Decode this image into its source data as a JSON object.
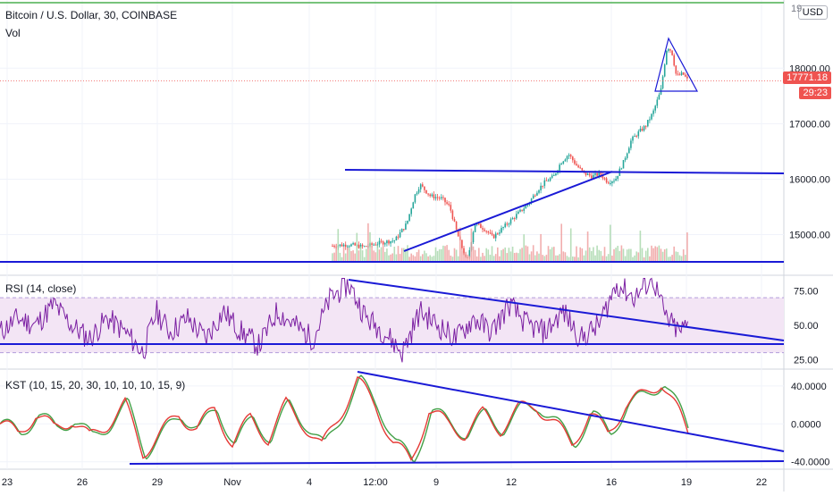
{
  "legend": {
    "main_title": "Bitcoin / U.S. Dollar, 30, COINBASE",
    "volume_label": "Vol",
    "rsi_label": "RSI (14, close)",
    "kst_label": "KST (10, 15, 20, 30, 10, 10, 10, 15, 9)"
  },
  "currency_badge": "USD",
  "last_price_tag": "17771.18",
  "countdown_tag": "29:23",
  "price_axis_top_partial": "19",
  "colors": {
    "price_line": "#2962ff",
    "drawing": "#1a1ad6",
    "rsi": "#7b1fa2",
    "rsi_band": "#f3e5f5",
    "kst": "#e53935",
    "kst_signal": "#43a047",
    "up": "#26a69a",
    "down": "#ef5350",
    "grid": "#f0f3fa",
    "green_line": "#4caf50"
  },
  "chart_data": [
    {
      "type": "candlestick",
      "title": "Bitcoin / U.S. Dollar, 30, COINBASE",
      "ylabel": "USD",
      "ylim": [
        14300,
        19100
      ],
      "yticks": [
        15000,
        16000,
        17000,
        18000
      ],
      "ytick_labels": [
        "15000.00",
        "16000.00",
        "17000.00",
        "18000.00"
      ],
      "last_price": 17771.18,
      "x_tick_labels": [
        "23",
        "26",
        "29",
        "Nov",
        "4",
        "12:00",
        "9",
        "12",
        "16",
        "19",
        "22"
      ],
      "close_path": [
        [
          0,
          14800
        ],
        [
          20,
          14820
        ],
        [
          40,
          14780
        ],
        [
          60,
          14850
        ],
        [
          80,
          14900
        ],
        [
          95,
          15200
        ],
        [
          105,
          15700
        ],
        [
          112,
          15900
        ],
        [
          125,
          15700
        ],
        [
          140,
          15650
        ],
        [
          150,
          15500
        ],
        [
          160,
          15000
        ],
        [
          172,
          14500
        ],
        [
          182,
          15200
        ],
        [
          195,
          15100
        ],
        [
          205,
          14950
        ],
        [
          220,
          15150
        ],
        [
          235,
          15350
        ],
        [
          250,
          15550
        ],
        [
          262,
          15800
        ],
        [
          272,
          15950
        ],
        [
          283,
          16050
        ],
        [
          292,
          16300
        ],
        [
          302,
          16450
        ],
        [
          312,
          16250
        ],
        [
          322,
          16100
        ],
        [
          332,
          16050
        ],
        [
          342,
          16100
        ],
        [
          352,
          15950
        ],
        [
          362,
          16000
        ],
        [
          372,
          16300
        ],
        [
          382,
          16700
        ],
        [
          392,
          16850
        ],
        [
          400,
          16950
        ],
        [
          410,
          17200
        ],
        [
          420,
          17600
        ],
        [
          428,
          18400
        ],
        [
          434,
          18300
        ],
        [
          440,
          17850
        ],
        [
          448,
          17900
        ],
        [
          455,
          17771
        ]
      ],
      "volume": {
        "label": "Vol"
      }
    },
    {
      "type": "line",
      "name": "RSI (14, close)",
      "ylim": [
        20,
        85
      ],
      "yticks": [
        25,
        50,
        75
      ],
      "ytick_labels": [
        "25.00",
        "50.00",
        "75.00"
      ],
      "band": [
        30,
        70
      ],
      "path": [
        [
          0,
          45
        ],
        [
          20,
          55
        ],
        [
          40,
          50
        ],
        [
          60,
          65
        ],
        [
          80,
          50
        ],
        [
          100,
          40
        ],
        [
          120,
          55
        ],
        [
          140,
          45
        ],
        [
          160,
          30
        ],
        [
          175,
          60
        ],
        [
          190,
          45
        ],
        [
          210,
          55
        ],
        [
          230,
          40
        ],
        [
          250,
          60
        ],
        [
          270,
          45
        ],
        [
          290,
          35
        ],
        [
          310,
          60
        ],
        [
          330,
          50
        ],
        [
          350,
          40
        ],
        [
          370,
          70
        ],
        [
          390,
          80
        ],
        [
          410,
          55
        ],
        [
          430,
          45
        ],
        [
          450,
          30
        ],
        [
          470,
          60
        ],
        [
          490,
          50
        ],
        [
          510,
          40
        ],
        [
          530,
          55
        ],
        [
          550,
          45
        ],
        [
          570,
          65
        ],
        [
          590,
          50
        ],
        [
          610,
          45
        ],
        [
          630,
          60
        ],
        [
          650,
          40
        ],
        [
          670,
          50
        ],
        [
          690,
          80
        ],
        [
          710,
          70
        ],
        [
          730,
          85
        ],
        [
          745,
          55
        ],
        [
          760,
          45
        ],
        [
          770,
          50
        ]
      ]
    },
    {
      "type": "line",
      "name": "KST (10, 15, 20, 30, 10, 10, 10, 15, 9)",
      "ylim": [
        -45,
        55
      ],
      "yticks": [
        -40,
        0,
        40
      ],
      "ytick_labels": [
        "-40.0000",
        "0.0000",
        "40.0000"
      ],
      "path": [
        [
          0,
          0
        ],
        [
          20,
          -10
        ],
        [
          40,
          10
        ],
        [
          60,
          -5
        ],
        [
          80,
          5
        ],
        [
          100,
          -15
        ],
        [
          120,
          0
        ],
        [
          140,
          20
        ],
        [
          160,
          -30
        ],
        [
          180,
          -10
        ],
        [
          200,
          10
        ],
        [
          220,
          -5
        ],
        [
          240,
          15
        ],
        [
          260,
          -20
        ],
        [
          280,
          5
        ],
        [
          300,
          -15
        ],
        [
          320,
          20
        ],
        [
          340,
          0
        ],
        [
          360,
          -25
        ],
        [
          380,
          10
        ],
        [
          400,
          45
        ],
        [
          420,
          20
        ],
        [
          440,
          -20
        ],
        [
          460,
          -40
        ],
        [
          480,
          15
        ],
        [
          500,
          0
        ],
        [
          520,
          -10
        ],
        [
          540,
          10
        ],
        [
          560,
          -5
        ],
        [
          580,
          15
        ],
        [
          600,
          20
        ],
        [
          620,
          0
        ],
        [
          640,
          -20
        ],
        [
          660,
          10
        ],
        [
          680,
          -10
        ],
        [
          700,
          20
        ],
        [
          720,
          30
        ],
        [
          740,
          45
        ],
        [
          760,
          10
        ],
        [
          770,
          -10
        ]
      ]
    }
  ]
}
